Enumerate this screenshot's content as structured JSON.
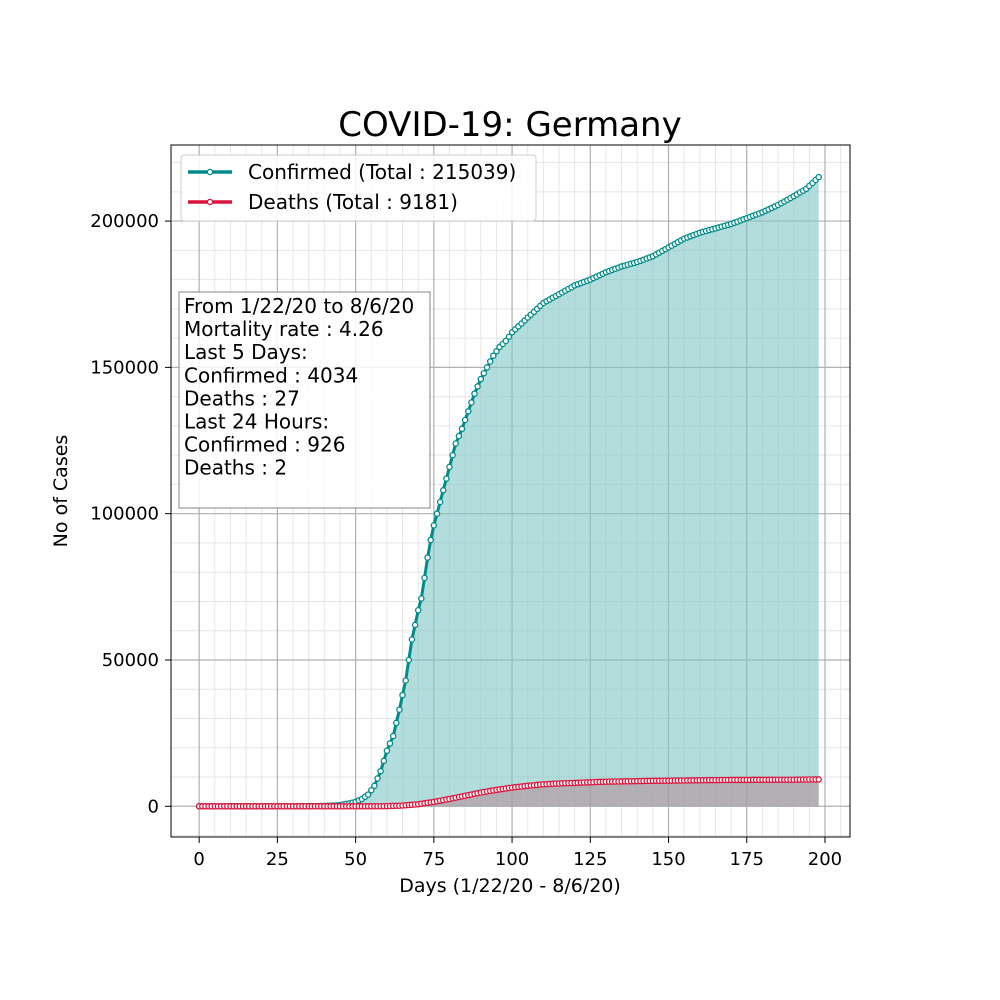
{
  "chart_data": {
    "type": "line",
    "title": "COVID-19: Germany",
    "xlabel": "Days (1/22/20 - 8/6/20)",
    "ylabel": "No of Cases",
    "xlim": [
      -9,
      208
    ],
    "ylim": [
      -10500,
      226000
    ],
    "x_ticks": [
      0,
      25,
      50,
      75,
      100,
      125,
      150,
      175,
      200
    ],
    "y_ticks": [
      0,
      50000,
      100000,
      150000,
      200000
    ],
    "grid": true,
    "minor_grid": true,
    "legend_position": "upper-left",
    "series": [
      {
        "name": "Confirmed (Total : 215039)",
        "color": "#008b8b",
        "fill_color": "#80c4c4",
        "points": [
          [
            0,
            0
          ],
          [
            10,
            0
          ],
          [
            20,
            0
          ],
          [
            30,
            20
          ],
          [
            36,
            50
          ],
          [
            40,
            100
          ],
          [
            44,
            300
          ],
          [
            46,
            600
          ],
          [
            48,
            1000
          ],
          [
            50,
            1500
          ],
          [
            52,
            2500
          ],
          [
            54,
            4000
          ],
          [
            56,
            7000
          ],
          [
            58,
            12000
          ],
          [
            60,
            19000
          ],
          [
            62,
            24000
          ],
          [
            64,
            33000
          ],
          [
            66,
            43000
          ],
          [
            67,
            50000
          ],
          [
            68,
            57000
          ],
          [
            69,
            62000
          ],
          [
            70,
            67000
          ],
          [
            71,
            71000
          ],
          [
            72,
            78000
          ],
          [
            73,
            85000
          ],
          [
            74,
            91000
          ],
          [
            75,
            96000
          ],
          [
            76,
            100000
          ],
          [
            78,
            108000
          ],
          [
            80,
            116000
          ],
          [
            82,
            124000
          ],
          [
            84,
            129000
          ],
          [
            86,
            135000
          ],
          [
            88,
            141000
          ],
          [
            90,
            146000
          ],
          [
            92,
            150000
          ],
          [
            94,
            154000
          ],
          [
            96,
            157000
          ],
          [
            98,
            159000
          ],
          [
            100,
            162000
          ],
          [
            103,
            165000
          ],
          [
            106,
            168000
          ],
          [
            110,
            172000
          ],
          [
            115,
            175000
          ],
          [
            120,
            178000
          ],
          [
            125,
            180000
          ],
          [
            130,
            182500
          ],
          [
            135,
            184500
          ],
          [
            140,
            186000
          ],
          [
            145,
            188000
          ],
          [
            150,
            191000
          ],
          [
            155,
            194000
          ],
          [
            160,
            196000
          ],
          [
            165,
            197500
          ],
          [
            170,
            199000
          ],
          [
            175,
            201000
          ],
          [
            180,
            203000
          ],
          [
            185,
            205500
          ],
          [
            190,
            208500
          ],
          [
            194,
            211000
          ],
          [
            198,
            215039
          ]
        ]
      },
      {
        "name": "Deaths (Total : 9181)",
        "color": "#dc143c",
        "fill_color": "#b48a96",
        "points": [
          [
            0,
            0
          ],
          [
            40,
            0
          ],
          [
            50,
            0
          ],
          [
            55,
            0
          ],
          [
            60,
            50
          ],
          [
            65,
            250
          ],
          [
            70,
            700
          ],
          [
            75,
            1500
          ],
          [
            80,
            2500
          ],
          [
            85,
            3600
          ],
          [
            90,
            4700
          ],
          [
            95,
            5600
          ],
          [
            100,
            6400
          ],
          [
            105,
            7000
          ],
          [
            110,
            7500
          ],
          [
            115,
            7800
          ],
          [
            120,
            8000
          ],
          [
            125,
            8200
          ],
          [
            130,
            8400
          ],
          [
            135,
            8500
          ],
          [
            140,
            8600
          ],
          [
            145,
            8700
          ],
          [
            150,
            8750
          ],
          [
            160,
            8900
          ],
          [
            170,
            9000
          ],
          [
            180,
            9050
          ],
          [
            190,
            9100
          ],
          [
            198,
            9181
          ]
        ]
      }
    ],
    "annotation_lines": [
      "From 1/22/20 to 8/6/20",
      "Mortality rate : 4.26",
      "Last 5 Days:",
      "Confirmed : 4034",
      "Deaths : 27",
      "Last 24 Hours:",
      "Confirmed : 926",
      "Deaths : 2"
    ]
  }
}
